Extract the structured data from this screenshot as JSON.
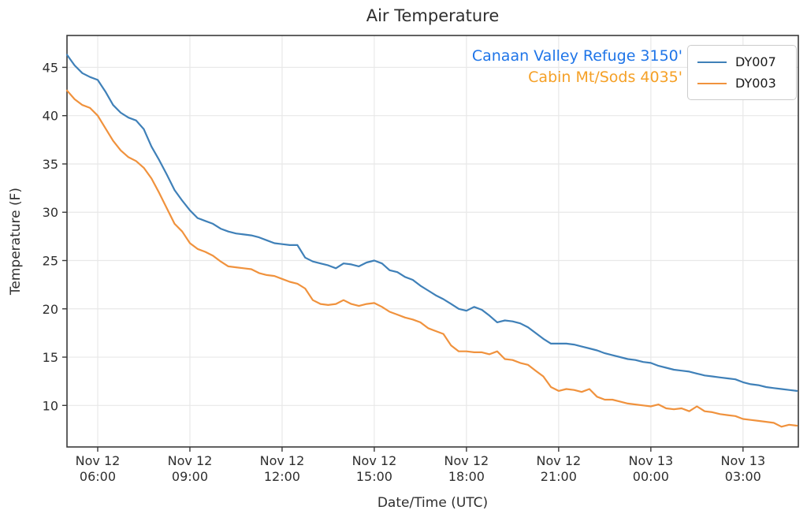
{
  "page": {
    "title": "Air Temperature"
  },
  "chart_data": {
    "type": "line",
    "title": "Air Temperature",
    "xlabel": "Date/Time (UTC)",
    "ylabel": "Temperature (F)",
    "grid": true,
    "legend_position": "upper right",
    "ylim": [
      5.7,
      48.3
    ],
    "yticks": [
      10,
      15,
      20,
      25,
      30,
      35,
      40,
      45
    ],
    "x_hours_since": "Nov 12 05:00 UTC",
    "xlim_hours": [
      0,
      23.8
    ],
    "x_step_hours": 0.25,
    "xticks": [
      {
        "t": 1,
        "line1": "Nov 12",
        "line2": "06:00"
      },
      {
        "t": 4,
        "line1": "Nov 12",
        "line2": "09:00"
      },
      {
        "t": 7,
        "line1": "Nov 12",
        "line2": "12:00"
      },
      {
        "t": 10,
        "line1": "Nov 12",
        "line2": "15:00"
      },
      {
        "t": 13,
        "line1": "Nov 12",
        "line2": "18:00"
      },
      {
        "t": 16,
        "line1": "Nov 12",
        "line2": "21:00"
      },
      {
        "t": 19,
        "line1": "Nov 13",
        "line2": "00:00"
      },
      {
        "t": 22,
        "line1": "Nov 13",
        "line2": "03:00"
      }
    ],
    "annotations": [
      {
        "text": "Canaan Valley Refuge 3150'",
        "color": "#1f75e8"
      },
      {
        "text": "Cabin Mt/Sods 4035'",
        "color": "#f5a026"
      }
    ],
    "legend": {
      "entries": [
        {
          "label": "DY007",
          "color": "#3f80b8"
        },
        {
          "label": "DY003",
          "color": "#f0923d"
        }
      ]
    },
    "series": [
      {
        "name": "DY007",
        "station": "Canaan Valley Refuge 3150'",
        "color": "#3f80b8",
        "values": [
          46.3,
          45.2,
          44.4,
          44.0,
          43.7,
          42.5,
          41.1,
          40.3,
          39.8,
          39.5,
          38.6,
          36.8,
          35.4,
          33.9,
          32.3,
          31.2,
          30.2,
          29.4,
          29.1,
          28.8,
          28.3,
          28.0,
          27.8,
          27.7,
          27.6,
          27.4,
          27.1,
          26.8,
          26.7,
          26.6,
          26.6,
          25.3,
          24.9,
          24.7,
          24.5,
          24.2,
          24.7,
          24.6,
          24.4,
          24.8,
          25.0,
          24.7,
          24.0,
          23.8,
          23.3,
          23.0,
          22.4,
          21.9,
          21.4,
          21.0,
          20.5,
          20.0,
          19.8,
          20.2,
          19.9,
          19.3,
          18.6,
          18.8,
          18.7,
          18.5,
          18.1,
          17.5,
          16.9,
          16.4,
          16.4,
          16.4,
          16.3,
          16.1,
          15.9,
          15.7,
          15.4,
          15.2,
          15.0,
          14.8,
          14.7,
          14.5,
          14.4,
          14.1,
          13.9,
          13.7,
          13.6,
          13.5,
          13.3,
          13.1,
          13.0,
          12.9,
          12.8,
          12.7,
          12.4,
          12.2,
          12.1,
          11.9,
          11.8,
          11.7,
          11.6,
          11.5
        ]
      },
      {
        "name": "DY003",
        "station": "Cabin Mt/Sods 4035'",
        "color": "#f0923d",
        "values": [
          42.6,
          41.7,
          41.1,
          40.8,
          40.0,
          38.7,
          37.4,
          36.4,
          35.7,
          35.3,
          34.6,
          33.5,
          32.0,
          30.4,
          28.8,
          28.0,
          26.8,
          26.2,
          25.9,
          25.5,
          24.9,
          24.4,
          24.3,
          24.2,
          24.1,
          23.7,
          23.5,
          23.4,
          23.1,
          22.8,
          22.6,
          22.1,
          20.9,
          20.5,
          20.4,
          20.5,
          20.9,
          20.5,
          20.3,
          20.5,
          20.6,
          20.2,
          19.7,
          19.4,
          19.1,
          18.9,
          18.6,
          18.0,
          17.7,
          17.4,
          16.2,
          15.6,
          15.6,
          15.5,
          15.5,
          15.3,
          15.6,
          14.8,
          14.7,
          14.4,
          14.2,
          13.6,
          13.0,
          11.9,
          11.5,
          11.7,
          11.6,
          11.4,
          11.7,
          10.9,
          10.6,
          10.6,
          10.4,
          10.2,
          10.1,
          10.0,
          9.9,
          10.1,
          9.7,
          9.6,
          9.7,
          9.4,
          9.9,
          9.4,
          9.3,
          9.1,
          9.0,
          8.9,
          8.6,
          8.5,
          8.4,
          8.3,
          8.2,
          7.8,
          8.0,
          7.9
        ]
      }
    ]
  }
}
